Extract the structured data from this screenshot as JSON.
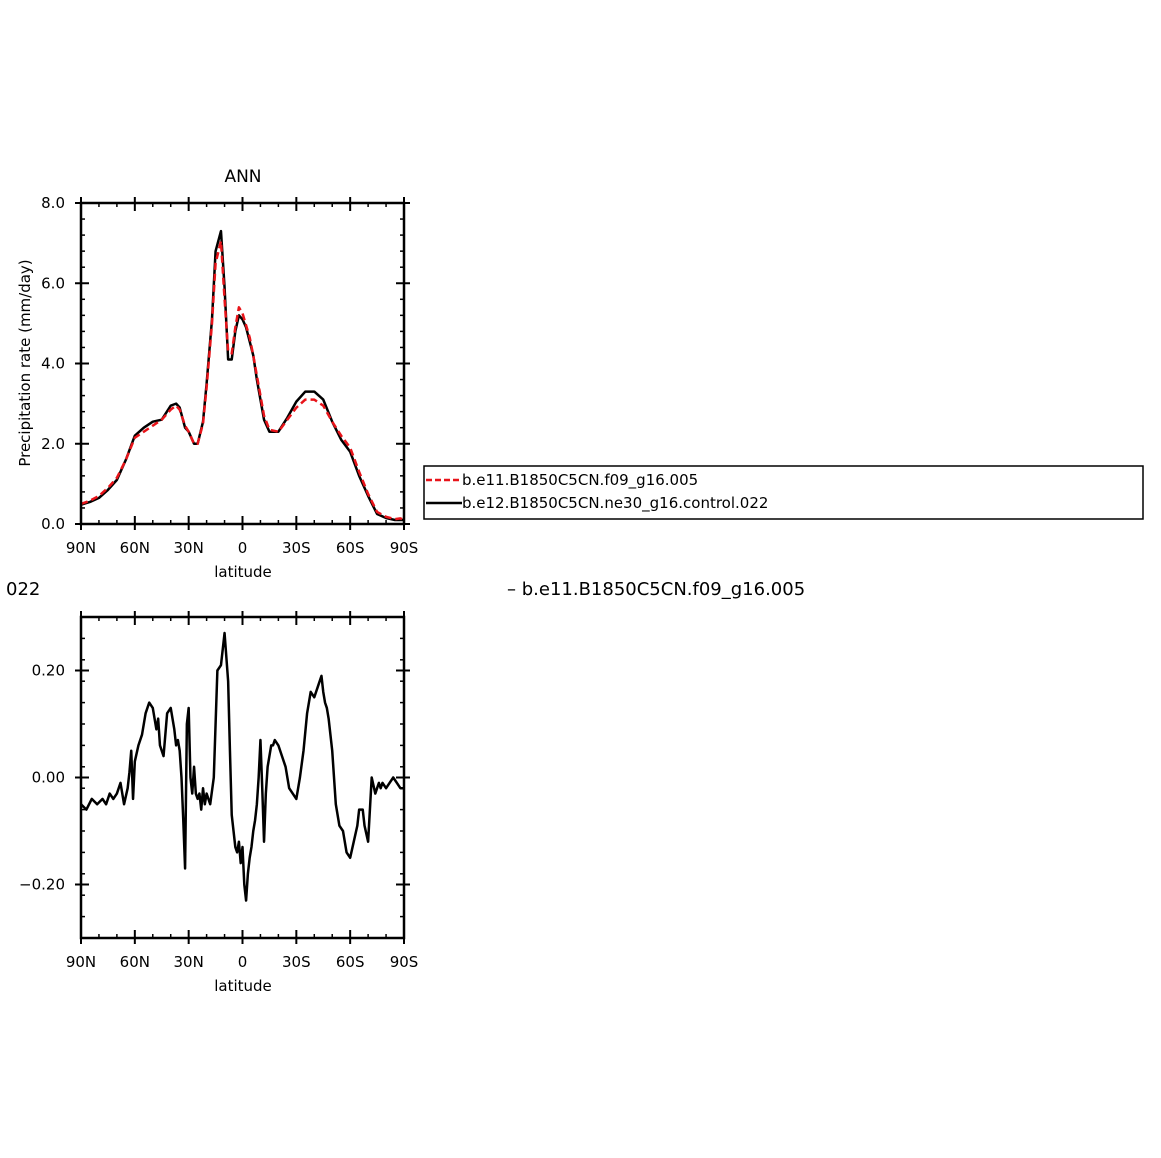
{
  "colors": {
    "series_red": "#e8141a",
    "series_black": "#000000",
    "axes": "#000000",
    "background": "#ffffff"
  },
  "fragments": {
    "left_text": "022",
    "right_text": "– b.e11.B1850C5CN.f09_g16.005"
  },
  "chart_data": [
    {
      "type": "line",
      "title": "ANN",
      "xlabel": "latitude",
      "ylabel": "Precipitation rate (mm/day)",
      "xlim": [
        90,
        -90
      ],
      "ylim": [
        0,
        8
      ],
      "x_ticks": [
        90,
        60,
        30,
        0,
        -30,
        -60,
        -90
      ],
      "x_tick_labels": [
        "90N",
        "60N",
        "30N",
        "0",
        "30S",
        "60S",
        "90S"
      ],
      "y_ticks": [
        0,
        2,
        4,
        6,
        8
      ],
      "y_tick_labels": [
        "0.0",
        "2.0",
        "4.0",
        "6.0",
        "8.0"
      ],
      "grid": false,
      "legend": {
        "position": "right-outside",
        "entries": [
          "b.e11.B1850C5CN.f09_g16.005",
          "b.e12.B1850C5CN.ne30_g16.control.022"
        ]
      },
      "x": [
        90,
        85,
        80,
        75,
        70,
        65,
        60,
        55,
        50,
        45,
        40,
        37,
        35,
        32,
        30,
        27,
        25,
        22,
        20,
        17,
        15,
        12,
        10,
        8,
        6,
        4,
        2,
        0,
        -2,
        -4,
        -6,
        -8,
        -10,
        -12,
        -15,
        -20,
        -25,
        -30,
        -35,
        -40,
        -45,
        -50,
        -55,
        -60,
        -65,
        -70,
        -75,
        -80,
        -85,
        -88,
        -90
      ],
      "series": [
        {
          "name": "b.e11.B1850C5CN.f09_g16.005",
          "color": "#e8141a",
          "dash": "dashed",
          "values": [
            0.5,
            0.58,
            0.7,
            0.9,
            1.15,
            1.6,
            2.15,
            2.3,
            2.45,
            2.6,
            2.85,
            2.95,
            2.85,
            2.45,
            2.3,
            2.0,
            2.0,
            2.5,
            3.4,
            5.0,
            6.5,
            7.05,
            5.6,
            4.3,
            4.25,
            4.9,
            5.4,
            5.25,
            4.95,
            4.65,
            4.2,
            3.7,
            3.2,
            2.7,
            2.35,
            2.3,
            2.6,
            2.9,
            3.1,
            3.1,
            2.95,
            2.55,
            2.2,
            1.9,
            1.3,
            0.75,
            0.3,
            0.18,
            0.12,
            0.14,
            0.1
          ]
        },
        {
          "name": "b.e12.B1850C5CN.ne30_g16.control.022",
          "color": "#000000",
          "dash": "solid",
          "values": [
            0.48,
            0.55,
            0.65,
            0.85,
            1.1,
            1.6,
            2.2,
            2.4,
            2.55,
            2.6,
            2.95,
            3.0,
            2.9,
            2.4,
            2.3,
            2.0,
            2.0,
            2.55,
            3.5,
            5.1,
            6.8,
            7.3,
            5.9,
            4.1,
            4.1,
            4.8,
            5.2,
            5.1,
            4.9,
            4.55,
            4.2,
            3.6,
            3.1,
            2.6,
            2.3,
            2.3,
            2.65,
            3.05,
            3.3,
            3.3,
            3.1,
            2.55,
            2.1,
            1.8,
            1.2,
            0.7,
            0.25,
            0.15,
            0.1,
            0.1,
            0.1
          ]
        }
      ]
    },
    {
      "type": "line",
      "title": "",
      "xlabel": "latitude",
      "ylabel": "",
      "xlim": [
        90,
        -90
      ],
      "ylim": [
        -0.3,
        0.3
      ],
      "x_ticks": [
        90,
        60,
        30,
        0,
        -30,
        -60,
        -90
      ],
      "x_tick_labels": [
        "90N",
        "60N",
        "30N",
        "0",
        "30S",
        "60S",
        "90S"
      ],
      "y_ticks": [
        -0.2,
        0.0,
        0.2
      ],
      "y_tick_labels": [
        "−0.20",
        "0.00",
        "0.20"
      ],
      "grid": false,
      "x": [
        90,
        87,
        84,
        81,
        78,
        76,
        74,
        72,
        70,
        68,
        66,
        64,
        63,
        62,
        61,
        60,
        58,
        56,
        54,
        52,
        50,
        48,
        47,
        46,
        44,
        42,
        40,
        38,
        37,
        36,
        35,
        34,
        33,
        32,
        31,
        30,
        29,
        28,
        27,
        26,
        25,
        24,
        23,
        22,
        21,
        20,
        18,
        16,
        14,
        12,
        10,
        8,
        7,
        6,
        5,
        4,
        3,
        2,
        1,
        0,
        -1,
        -2,
        -3,
        -4,
        -5,
        -6,
        -7,
        -8,
        -9,
        -10,
        -11,
        -12,
        -13,
        -14,
        -15,
        -16,
        -17,
        -18,
        -20,
        -22,
        -24,
        -26,
        -28,
        -30,
        -32,
        -34,
        -36,
        -38,
        -40,
        -42,
        -44,
        -45,
        -46,
        -47,
        -48,
        -50,
        -52,
        -54,
        -56,
        -58,
        -60,
        -62,
        -64,
        -65,
        -66,
        -67,
        -68,
        -70,
        -72,
        -74,
        -75,
        -76,
        -77,
        -78,
        -80,
        -82,
        -84,
        -86,
        -88,
        -90
      ],
      "series": [
        {
          "name": "",
          "color": "#000000",
          "dash": "solid",
          "values": [
            -0.05,
            -0.06,
            -0.04,
            -0.05,
            -0.04,
            -0.05,
            -0.03,
            -0.04,
            -0.03,
            -0.01,
            -0.05,
            -0.02,
            0.01,
            0.05,
            -0.04,
            0.03,
            0.06,
            0.08,
            0.12,
            0.14,
            0.13,
            0.09,
            0.11,
            0.06,
            0.04,
            0.12,
            0.13,
            0.09,
            0.06,
            0.07,
            0.05,
            0.0,
            -0.08,
            -0.17,
            0.1,
            0.13,
            0.0,
            -0.03,
            0.02,
            -0.03,
            -0.04,
            -0.03,
            -0.06,
            -0.02,
            -0.05,
            -0.03,
            -0.05,
            0.0,
            0.2,
            0.21,
            0.27,
            0.18,
            0.05,
            -0.07,
            -0.1,
            -0.13,
            -0.14,
            -0.12,
            -0.16,
            -0.13,
            -0.2,
            -0.23,
            -0.18,
            -0.15,
            -0.13,
            -0.1,
            -0.08,
            -0.05,
            0.0,
            0.07,
            -0.02,
            -0.12,
            -0.03,
            0.02,
            0.04,
            0.06,
            0.06,
            0.07,
            0.06,
            0.04,
            0.02,
            -0.02,
            -0.03,
            -0.04,
            0.0,
            0.05,
            0.12,
            0.16,
            0.15,
            0.17,
            0.19,
            0.16,
            0.14,
            0.13,
            0.11,
            0.05,
            -0.05,
            -0.09,
            -0.1,
            -0.14,
            -0.15,
            -0.12,
            -0.09,
            -0.06,
            -0.06,
            -0.06,
            -0.09,
            -0.12,
            0.0,
            -0.03,
            -0.02,
            -0.01,
            -0.02,
            -0.01,
            -0.02,
            -0.01,
            0.0,
            -0.01,
            -0.02,
            -0.02
          ]
        }
      ]
    }
  ]
}
